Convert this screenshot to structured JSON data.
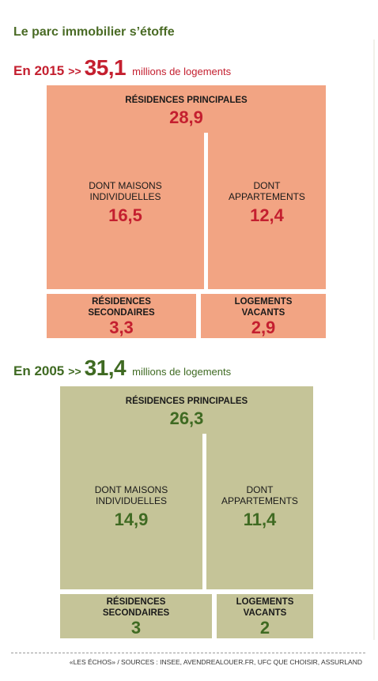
{
  "title": "Le parc immobilier s’étoffe",
  "colors": {
    "red": "#c41f2f",
    "green": "#3f6a22",
    "salmon": "#f2a483",
    "khaki": "#c5c498",
    "title_green": "#4a6b25"
  },
  "y2015": {
    "year_label": "En 2015",
    "sep": ">>",
    "total": "35,1",
    "unit": "millions de logements",
    "principales": {
      "label": "RÉSIDENCES PRINCIPALES",
      "value": "28,9"
    },
    "maisons": {
      "label_line1": "DONT MAISONS",
      "label_line2": "INDIVIDUELLES",
      "value": "16,5"
    },
    "appartements": {
      "label_line1": "DONT",
      "label_line2": "APPARTEMENTS",
      "value": "12,4"
    },
    "secondaires": {
      "label_line1": "RÉSIDENCES",
      "label_line2": "SECONDAIRES",
      "value": "3,3"
    },
    "vacants": {
      "label_line1": "LOGEMENTS",
      "label_line2": "VACANTS",
      "value": "2,9"
    }
  },
  "y2005": {
    "year_label": "En 2005",
    "sep": ">>",
    "total": "31,4",
    "unit": "millions de logements",
    "principales": {
      "label": "RÉSIDENCES PRINCIPALES",
      "value": "26,3"
    },
    "maisons": {
      "label_line1": "DONT MAISONS",
      "label_line2": "INDIVIDUELLES",
      "value": "14,9"
    },
    "appartements": {
      "label_line1": "DONT",
      "label_line2": "APPARTEMENTS",
      "value": "11,4"
    },
    "secondaires": {
      "label_line1": "RÉSIDENCES",
      "label_line2": "SECONDAIRES",
      "value": "3"
    },
    "vacants": {
      "label_line1": "LOGEMENTS",
      "label_line2": "VACANTS",
      "value": "2"
    }
  },
  "source": "«LES ÉCHOS» / SOURCES : INSEE, AVENDREALOUER.FR, UFC QUE CHOISIR, ASSURLAND"
}
